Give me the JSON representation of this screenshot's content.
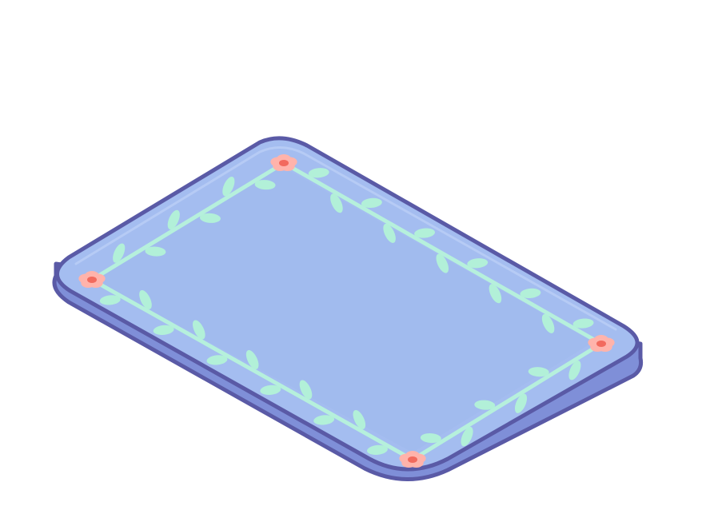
{
  "scene": {
    "background": "#ffffff",
    "object": "rug"
  },
  "rug": {
    "colors": {
      "top": "#a4bdf0",
      "top_inner_shade": "#9fb6ec",
      "side": "#7f8fd8",
      "outline": "#5a5aa6",
      "highlight": "#c3d3f8",
      "vine": "#b6f0dc",
      "leaf": "#b2f0d8",
      "flower_petal": "#ffb3ab",
      "flower_center": "#f26a5e"
    },
    "decorations": {
      "flower_count": 4,
      "vine_sides": 4
    }
  }
}
